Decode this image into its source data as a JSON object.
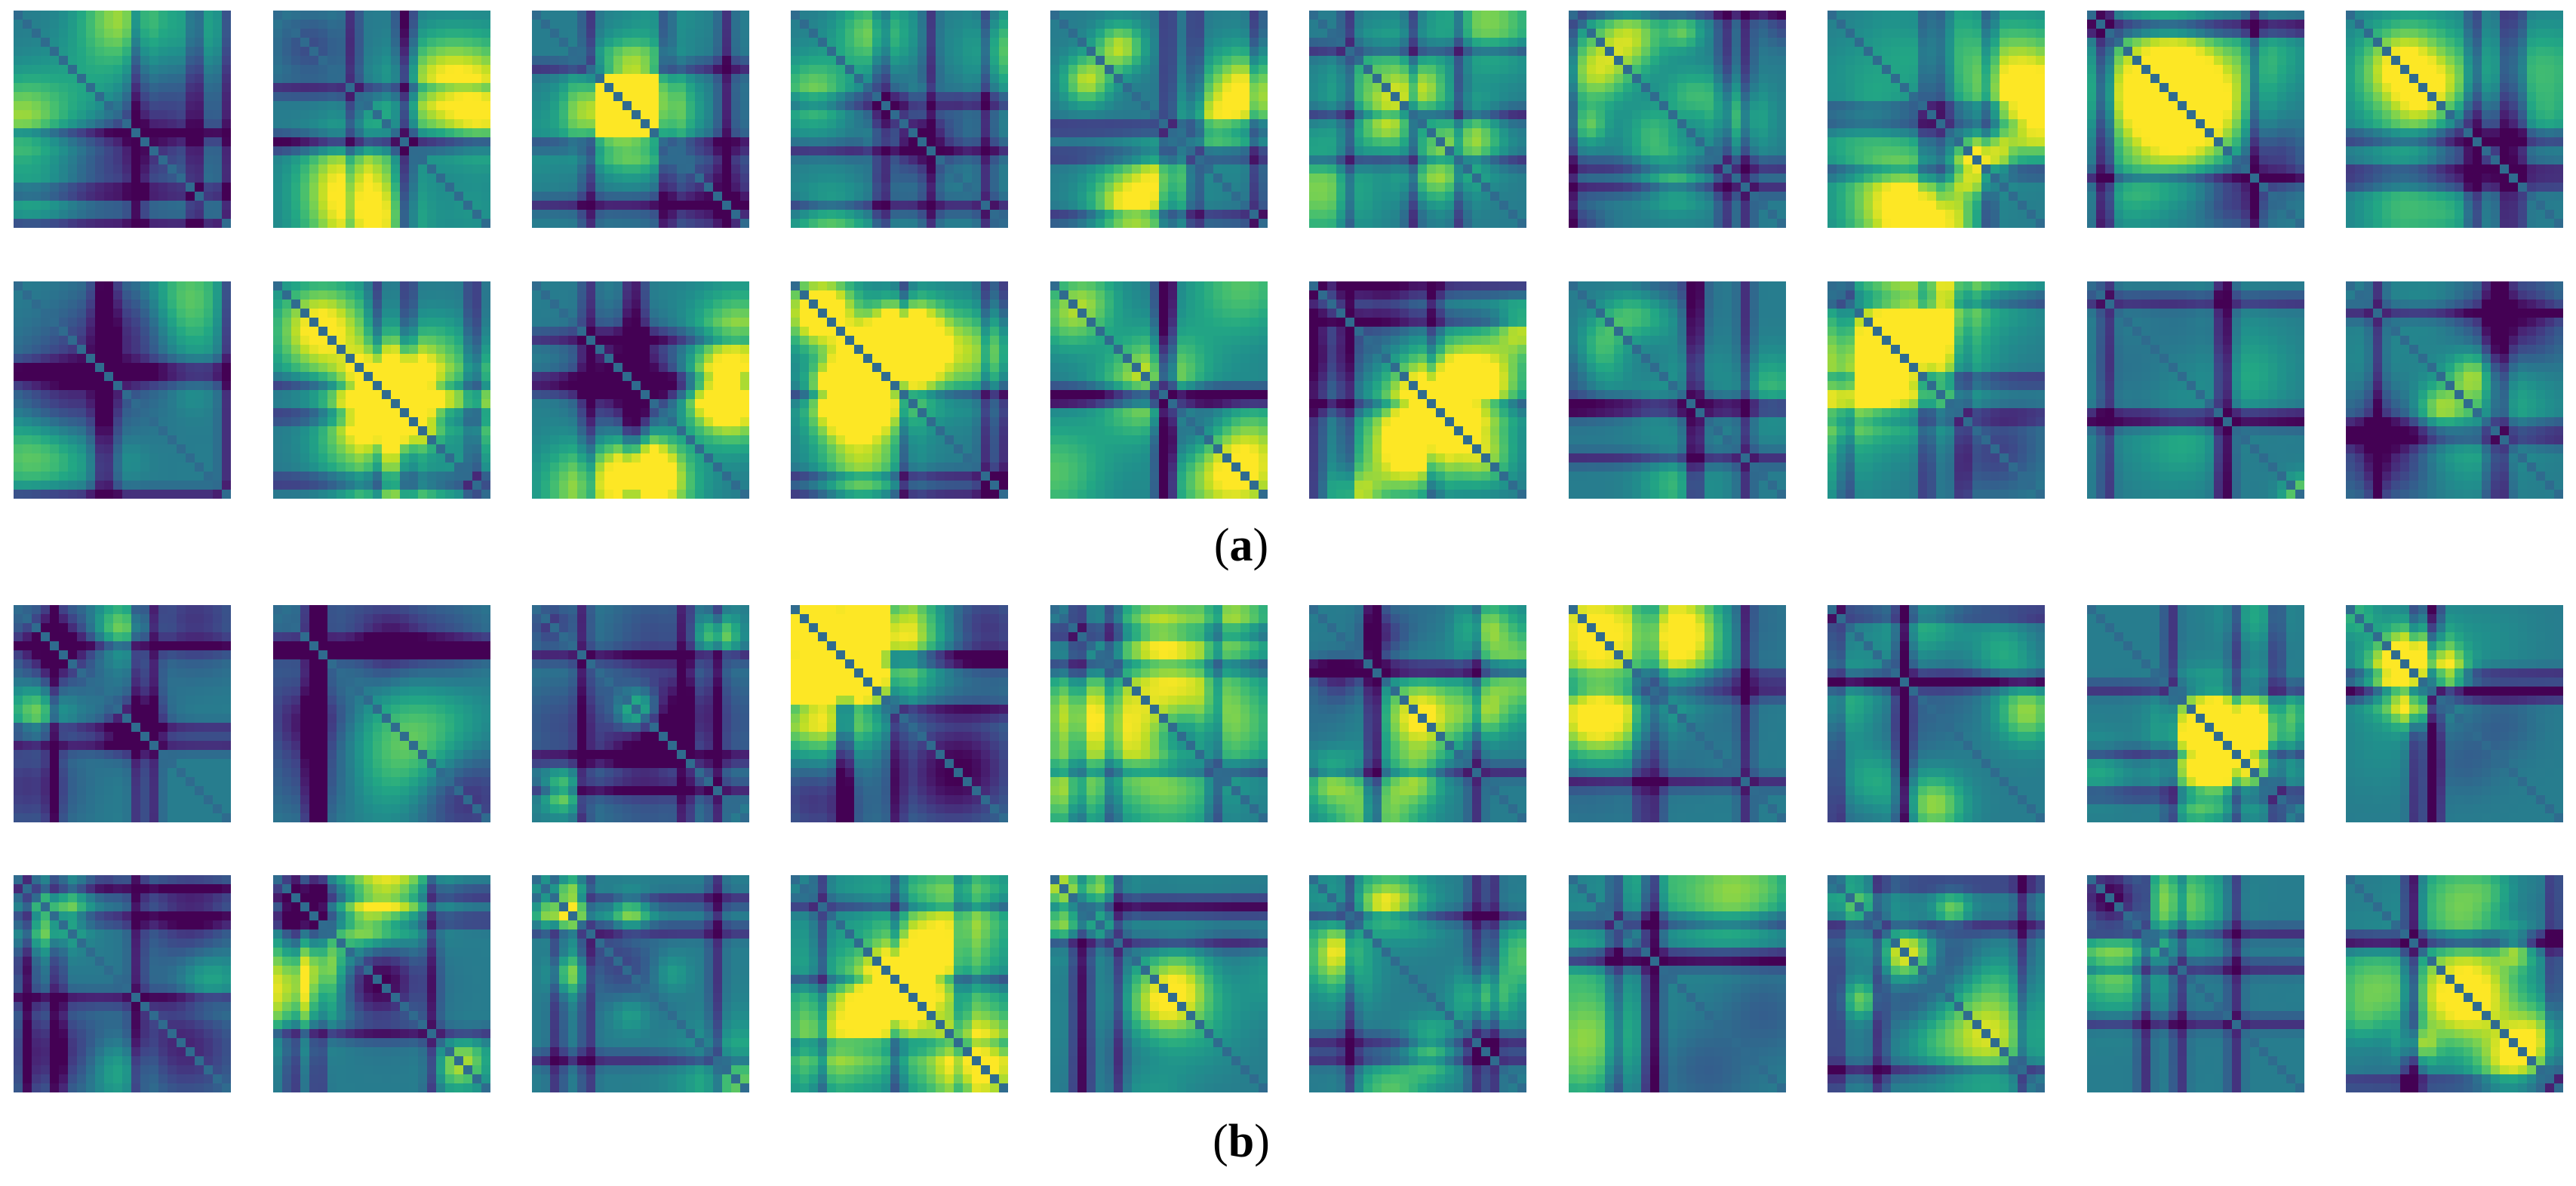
{
  "panels": [
    {
      "id": "a",
      "open": "(",
      "letter": "a",
      "close": ")",
      "rows": 2,
      "cols": 10,
      "seed": 11
    },
    {
      "id": "b",
      "open": "(",
      "letter": "b",
      "close": ")",
      "rows": 2,
      "cols": 10,
      "seed": 11
    }
  ],
  "colormap": "viridis",
  "grid_cells": 24
}
